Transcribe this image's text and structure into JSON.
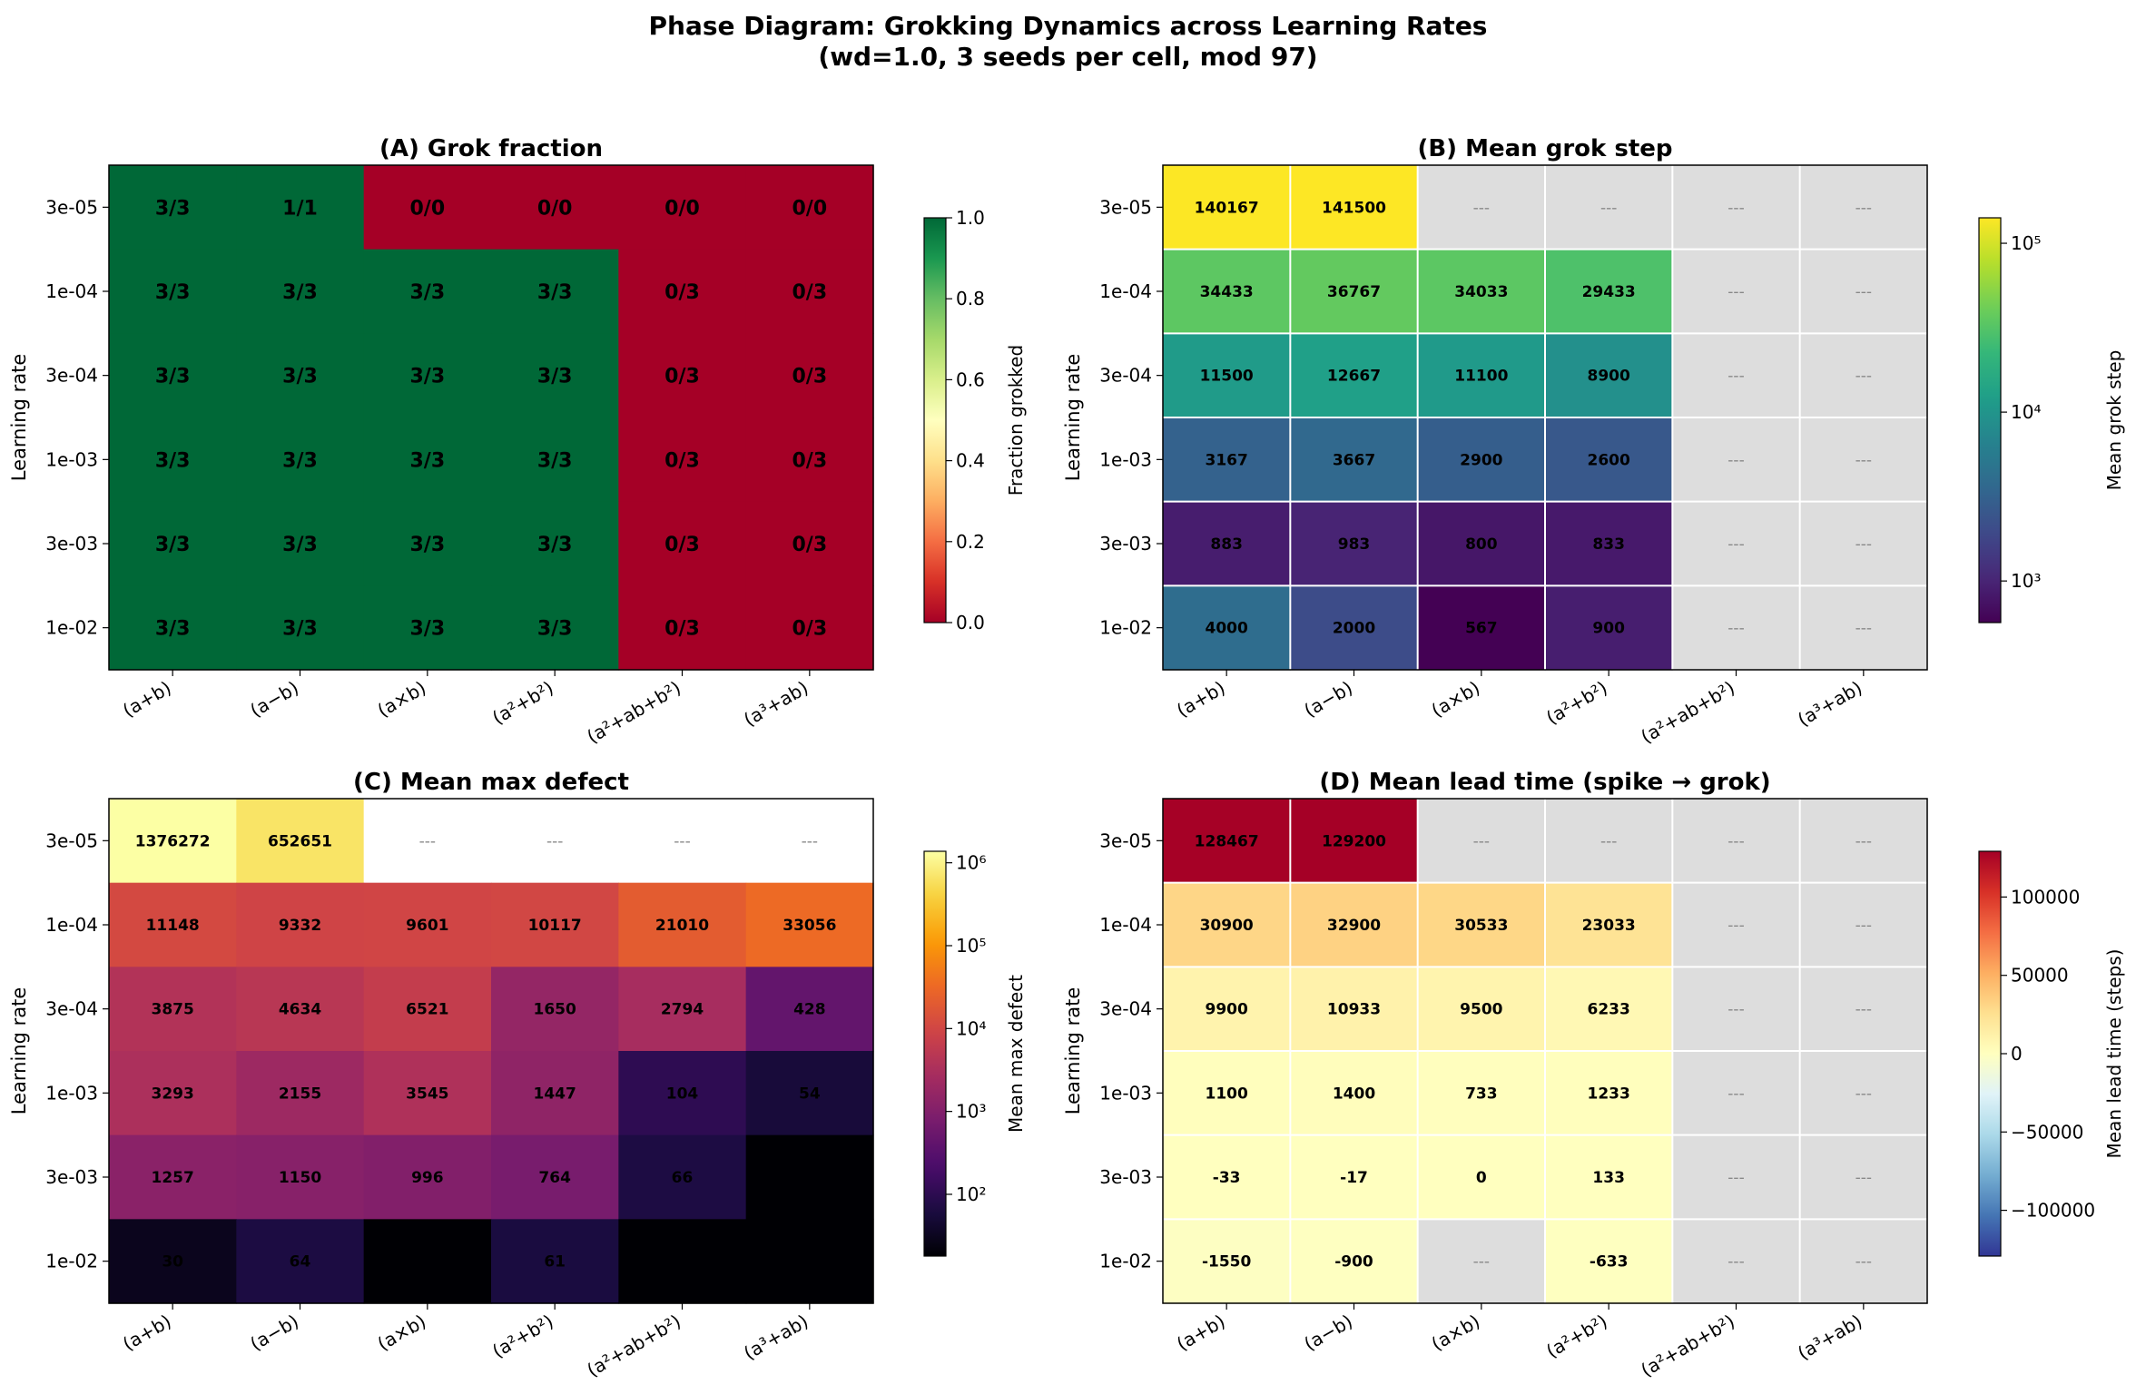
{
  "figure": {
    "title_line1": "Phase Diagram: Grokking Dynamics across Learning Rates",
    "title_line2": "(wd=1.0, 3 seeds per cell, mod 97)"
  },
  "chart_data": [
    {
      "type": "heatmap",
      "title": "(A) Grok fraction",
      "ylabel": "Learning rate",
      "xlabel": "",
      "x": [
        "(a+b)",
        "(a−b)",
        "(a×b)",
        "(a²+b²)",
        "(a²+ab+b²)",
        "(a³+ab)"
      ],
      "y": [
        "3e-05",
        "1e-04",
        "3e-04",
        "1e-03",
        "3e-03",
        "1e-02"
      ],
      "values": [
        [
          1,
          1,
          0,
          0,
          0,
          0
        ],
        [
          1,
          1,
          1,
          1,
          0,
          0
        ],
        [
          1,
          1,
          1,
          1,
          0,
          0
        ],
        [
          1,
          1,
          1,
          1,
          0,
          0
        ],
        [
          1,
          1,
          1,
          1,
          0,
          0
        ],
        [
          1,
          1,
          1,
          1,
          0,
          0
        ]
      ],
      "labels": [
        [
          "3/3",
          "1/1",
          "0/0",
          "0/0",
          "0/0",
          "0/0"
        ],
        [
          "3/3",
          "3/3",
          "3/3",
          "3/3",
          "0/3",
          "0/3"
        ],
        [
          "3/3",
          "3/3",
          "3/3",
          "3/3",
          "0/3",
          "0/3"
        ],
        [
          "3/3",
          "3/3",
          "3/3",
          "3/3",
          "0/3",
          "0/3"
        ],
        [
          "3/3",
          "3/3",
          "3/3",
          "3/3",
          "0/3",
          "0/3"
        ],
        [
          "3/3",
          "3/3",
          "3/3",
          "3/3",
          "0/3",
          "0/3"
        ]
      ],
      "colormap": "RdYlGn",
      "color_scale": "linear",
      "vmin": 0,
      "vmax": 1,
      "colorbar_label": "Fraction grokked",
      "colorbar_ticks": [
        0.0,
        0.2,
        0.4,
        0.6,
        0.8,
        1.0
      ],
      "colorbar_tick_labels": [
        "0.0",
        "0.2",
        "0.4",
        "0.6",
        "0.8",
        "1.0"
      ],
      "grid": false
    },
    {
      "type": "heatmap",
      "title": "(B) Mean grok step",
      "ylabel": "Learning rate",
      "xlabel": "",
      "x": [
        "(a+b)",
        "(a−b)",
        "(a×b)",
        "(a²+b²)",
        "(a²+ab+b²)",
        "(a³+ab)"
      ],
      "y": [
        "3e-05",
        "1e-04",
        "3e-04",
        "1e-03",
        "3e-03",
        "1e-02"
      ],
      "values": [
        [
          140167,
          141500,
          null,
          null,
          null,
          null
        ],
        [
          34433,
          36767,
          34033,
          29433,
          null,
          null
        ],
        [
          11500,
          12667,
          11100,
          8900,
          null,
          null
        ],
        [
          3167,
          3667,
          2900,
          2600,
          null,
          null
        ],
        [
          883,
          983,
          800,
          833,
          null,
          null
        ],
        [
          4000,
          2000,
          567,
          900,
          null,
          null
        ]
      ],
      "labels": [
        [
          "140167",
          "141500",
          "---",
          "---",
          "---",
          "---"
        ],
        [
          "34433",
          "36767",
          "34033",
          "29433",
          "---",
          "---"
        ],
        [
          "11500",
          "12667",
          "11100",
          "8900",
          "---",
          "---"
        ],
        [
          "3167",
          "3667",
          "2900",
          "2600",
          "---",
          "---"
        ],
        [
          "883",
          "983",
          "800",
          "833",
          "---",
          "---"
        ],
        [
          "4000",
          "2000",
          "567",
          "900",
          "---",
          "---"
        ]
      ],
      "missing_color": "#dddddd",
      "colormap": "viridis",
      "color_scale": "log",
      "vmin": 567,
      "vmax": 141500,
      "colorbar_label": "Mean grok step",
      "colorbar_ticks": [
        1000,
        10000,
        100000
      ],
      "colorbar_tick_labels": [
        "10³",
        "10⁴",
        "10⁵"
      ],
      "grid": true
    },
    {
      "type": "heatmap",
      "title": "(C) Mean max defect",
      "ylabel": "Learning rate",
      "xlabel": "",
      "x": [
        "(a+b)",
        "(a−b)",
        "(a×b)",
        "(a²+b²)",
        "(a²+ab+b²)",
        "(a³+ab)"
      ],
      "y": [
        "3e-05",
        "1e-04",
        "3e-04",
        "1e-03",
        "3e-03",
        "1e-02"
      ],
      "values": [
        [
          1376272,
          652651,
          null,
          null,
          null,
          null
        ],
        [
          11148,
          9332,
          9601,
          10117,
          21010,
          33056
        ],
        [
          3875,
          4634,
          6521,
          1650,
          2794,
          428
        ],
        [
          3293,
          2155,
          3545,
          1447,
          104,
          54
        ],
        [
          1257,
          1150,
          996,
          764,
          66,
          18
        ],
        [
          30,
          64,
          18,
          61,
          18,
          18
        ]
      ],
      "labels": [
        [
          "1376272",
          "652651",
          "---",
          "---",
          "---",
          "---"
        ],
        [
          "11148",
          "9332",
          "9601",
          "10117",
          "21010",
          "33056"
        ],
        [
          "3875",
          "4634",
          "6521",
          "1650",
          "2794",
          "428"
        ],
        [
          "3293",
          "2155",
          "3545",
          "1447",
          "104",
          "54"
        ],
        [
          "1257",
          "1150",
          "996",
          "764",
          "66",
          ""
        ],
        [
          "30",
          "64",
          "",
          "61",
          "",
          ""
        ]
      ],
      "missing_color": "#ffffff",
      "colormap": "inferno",
      "color_scale": "log",
      "vmin": 18,
      "vmax": 1376272,
      "colorbar_label": "Mean max defect",
      "colorbar_ticks": [
        100,
        1000,
        10000,
        100000,
        1000000
      ],
      "colorbar_tick_labels": [
        "10²",
        "10³",
        "10⁴",
        "10⁵",
        "10⁶"
      ],
      "grid": false
    },
    {
      "type": "heatmap",
      "title": "(D) Mean lead time (spike → grok)",
      "ylabel": "Learning rate",
      "xlabel": "",
      "x": [
        "(a+b)",
        "(a−b)",
        "(a×b)",
        "(a²+b²)",
        "(a²+ab+b²)",
        "(a³+ab)"
      ],
      "y": [
        "3e-05",
        "1e-04",
        "3e-04",
        "1e-03",
        "3e-03",
        "1e-02"
      ],
      "values": [
        [
          128467,
          129200,
          null,
          null,
          null,
          null
        ],
        [
          30900,
          32900,
          30533,
          23033,
          null,
          null
        ],
        [
          9900,
          10933,
          9500,
          6233,
          null,
          null
        ],
        [
          1100,
          1400,
          733,
          1233,
          null,
          null
        ],
        [
          -33,
          -17,
          0,
          133,
          null,
          null
        ],
        [
          -1550,
          -900,
          null,
          -633,
          null,
          null
        ]
      ],
      "labels": [
        [
          "128467",
          "129200",
          "---",
          "---",
          "---",
          "---"
        ],
        [
          "30900",
          "32900",
          "30533",
          "23033",
          "---",
          "---"
        ],
        [
          "9900",
          "10933",
          "9500",
          "6233",
          "---",
          "---"
        ],
        [
          "1100",
          "1400",
          "733",
          "1233",
          "---",
          "---"
        ],
        [
          "-33",
          "-17",
          "0",
          "133",
          "---",
          "---"
        ],
        [
          "-1550",
          "-900",
          "---",
          "-633",
          "---",
          "---"
        ]
      ],
      "missing_color": "#dddddd",
      "colormap": "RdYlBu_r",
      "color_scale": "linear",
      "vmin": -129200,
      "vmax": 129200,
      "colorbar_label": "Mean lead time (steps)",
      "colorbar_ticks": [
        -100000,
        -50000,
        0,
        50000,
        100000
      ],
      "colorbar_tick_labels": [
        "−100000",
        "−50000",
        "0",
        "50000",
        "100000"
      ],
      "grid": true
    }
  ]
}
